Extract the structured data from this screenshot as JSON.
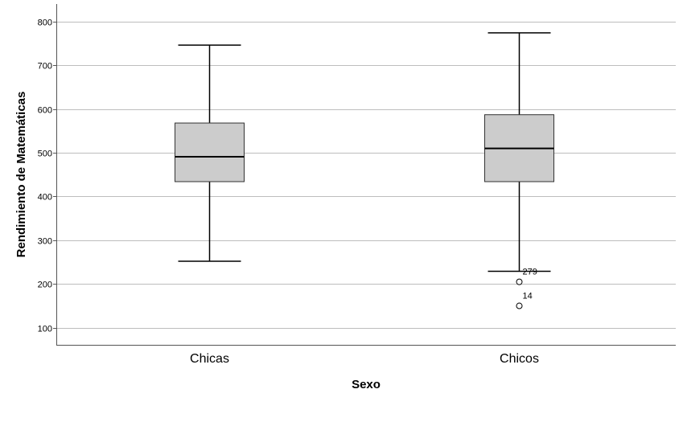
{
  "chart_data": {
    "type": "boxplot",
    "title": "",
    "xlabel": "Sexo",
    "ylabel": "Rendimiento de Matemáticas",
    "ylim": [
      61,
      840
    ],
    "yticks": [
      100,
      200,
      300,
      400,
      500,
      600,
      700,
      800
    ],
    "grid": "horizontal",
    "box_color": "#cccccc",
    "categories": [
      "Chicas",
      "Chicos"
    ],
    "boxes": [
      {
        "category": "Chicas",
        "min": 252,
        "q1": 434,
        "median": 491,
        "q3": 568,
        "max": 746,
        "outliers": []
      },
      {
        "category": "Chicos",
        "min": 229,
        "q1": 434,
        "median": 510,
        "q3": 587,
        "max": 774,
        "outliers": [
          {
            "label": "279",
            "value": 205
          },
          {
            "label": "14",
            "value": 150
          }
        ]
      }
    ]
  }
}
